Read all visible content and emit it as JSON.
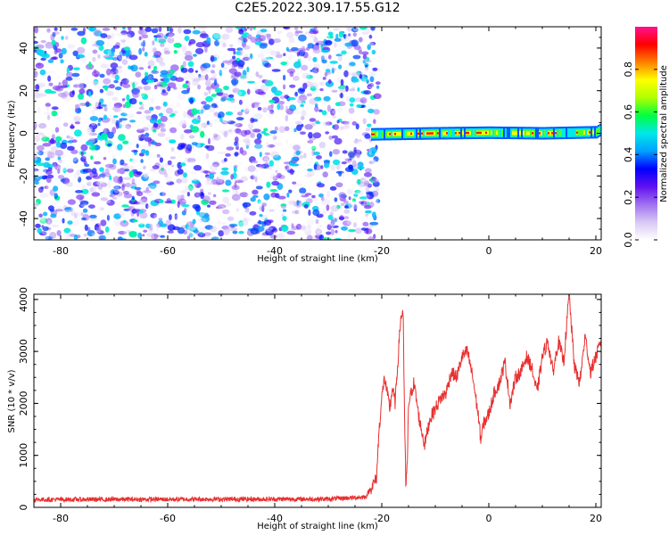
{
  "title": "C2E5.2022.309.17.55.G12",
  "chart_data": [
    {
      "type": "heatmap",
      "xlabel": "Height of straight line (km)",
      "ylabel": "Frequency (Hz)",
      "colorbar_label": "Normalized spectral amplitude",
      "xlim": [
        -85,
        21
      ],
      "ylim": [
        -50,
        50
      ],
      "xticks": [
        -80,
        -60,
        -40,
        -20,
        0,
        20
      ],
      "yticks": [
        -40,
        -20,
        0,
        20,
        40
      ],
      "colorbar_range": [
        0,
        1
      ],
      "colorbar_ticks": [
        0.0,
        0.2,
        0.4,
        0.6,
        0.8
      ],
      "colormap": [
        "#ffffff",
        "#d8c8f4",
        "#a070f0",
        "#6010f0",
        "#0000ff",
        "#00a0ff",
        "#00e8e8",
        "#00ff40",
        "#b0ff00",
        "#ffff00",
        "#ff8000",
        "#ff0000",
        "#ff1090"
      ],
      "noise_region_x": [
        -85,
        -22
      ],
      "noise_amplitude_range": [
        0.0,
        0.25
      ],
      "signal_track": {
        "x": [
          -22,
          -10,
          0,
          10,
          20,
          21
        ],
        "frequency": [
          -0.5,
          0,
          0.3,
          0,
          0.5,
          2
        ],
        "amplitude_range": [
          0.35,
          1.0
        ]
      }
    },
    {
      "type": "line",
      "xlabel": "Height of straight line (km)",
      "ylabel": "SNR (10 * v/v)",
      "xlim": [
        -85,
        21
      ],
      "ylim": [
        0,
        4100
      ],
      "xticks": [
        -80,
        -60,
        -40,
        -20,
        0,
        20
      ],
      "yticks": [
        0,
        1000,
        2000,
        3000,
        4000
      ],
      "color": "#e83030",
      "x": [
        -85,
        -30,
        -23,
        -21,
        -20.5,
        -20,
        -19.5,
        -19,
        -18.5,
        -18,
        -17.5,
        -17,
        -16.5,
        -16,
        -15.8,
        -15.5,
        -15.2,
        -15,
        -14.5,
        -14,
        -13,
        -12,
        -11,
        -10,
        -9,
        -8,
        -7,
        -6,
        -5,
        -4,
        -3,
        -2,
        -1.5,
        -1,
        0,
        1,
        2,
        3,
        4,
        5,
        6,
        7,
        8,
        9,
        10,
        11,
        12,
        13,
        14,
        15,
        16,
        17,
        18,
        19,
        20,
        21
      ],
      "y": [
        150,
        160,
        200,
        550,
        1500,
        2100,
        2500,
        2200,
        1900,
        2300,
        2000,
        2800,
        3600,
        3800,
        2000,
        400,
        900,
        2000,
        2200,
        2400,
        1700,
        1200,
        1700,
        1900,
        2100,
        2200,
        2600,
        2500,
        2900,
        3000,
        2500,
        1800,
        1300,
        1600,
        1800,
        2200,
        2400,
        2800,
        2000,
        2500,
        2600,
        2900,
        2700,
        2200,
        2900,
        3200,
        2600,
        3200,
        2800,
        4100,
        2700,
        2400,
        3300,
        2600,
        2900,
        3200
      ]
    }
  ]
}
